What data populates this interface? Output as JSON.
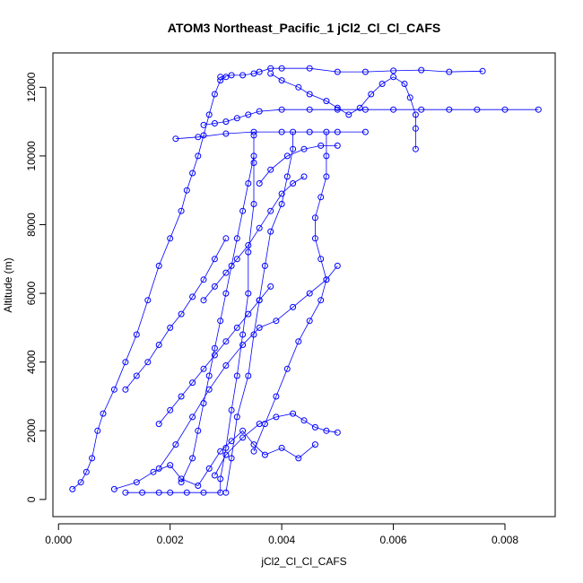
{
  "chart_data": {
    "type": "scatter",
    "title": "ATOM3 Northeast_Pacific_1 jCl2_Cl_Cl_CAFS",
    "xlabel": "jCl2_Cl_Cl_CAFS",
    "ylabel": "Altitude (m)",
    "xlim": [
      -0.0001,
      0.0089
    ],
    "ylim": [
      -500,
      13000
    ],
    "x_ticks": [
      0.0,
      0.002,
      0.004,
      0.006,
      0.008
    ],
    "x_tick_labels": [
      "0.000",
      "0.002",
      "0.004",
      "0.006",
      "0.008"
    ],
    "y_ticks": [
      0,
      2000,
      4000,
      6000,
      8000,
      10000,
      12000
    ],
    "y_tick_labels": [
      "0",
      "2000",
      "4000",
      "6000",
      "8000",
      "10000",
      "12000"
    ],
    "grid": false,
    "legend": "none",
    "marker": "open-circle",
    "color": "#0000FF",
    "series": [
      {
        "values": [
          [
            0.00025,
            300
          ],
          [
            0.0004,
            500
          ],
          [
            0.0005,
            800
          ],
          [
            0.0006,
            1200
          ],
          [
            0.0007,
            2000
          ],
          [
            0.0008,
            2500
          ],
          [
            0.001,
            3200
          ],
          [
            0.0012,
            4000
          ],
          [
            0.0014,
            4800
          ],
          [
            0.0016,
            5800
          ],
          [
            0.0018,
            6800
          ],
          [
            0.002,
            7600
          ],
          [
            0.0022,
            8400
          ],
          [
            0.0023,
            9000
          ],
          [
            0.0024,
            9500
          ],
          [
            0.0025,
            10000
          ],
          [
            0.0026,
            10600
          ],
          [
            0.0027,
            11200
          ],
          [
            0.0028,
            11800
          ],
          [
            0.0029,
            12200
          ],
          [
            0.003,
            12300
          ]
        ]
      },
      {
        "values": [
          [
            0.0029,
            12300
          ],
          [
            0.0031,
            12350
          ],
          [
            0.0033,
            12350
          ],
          [
            0.0035,
            12400
          ],
          [
            0.0036,
            12450
          ],
          [
            0.0038,
            12550
          ],
          [
            0.004,
            12550
          ],
          [
            0.0045,
            12550
          ],
          [
            0.005,
            12450
          ],
          [
            0.0055,
            12450
          ],
          [
            0.006,
            12480
          ],
          [
            0.0065,
            12500
          ],
          [
            0.007,
            12450
          ],
          [
            0.0076,
            12470
          ]
        ]
      },
      {
        "values": [
          [
            0.0026,
            10900
          ],
          [
            0.0028,
            10950
          ],
          [
            0.003,
            11000
          ],
          [
            0.0032,
            11100
          ],
          [
            0.0034,
            11200
          ],
          [
            0.0036,
            11300
          ],
          [
            0.004,
            11350
          ],
          [
            0.0045,
            11350
          ],
          [
            0.005,
            11350
          ],
          [
            0.0055,
            11350
          ],
          [
            0.006,
            11350
          ],
          [
            0.0065,
            11350
          ],
          [
            0.007,
            11350
          ],
          [
            0.0075,
            11350
          ],
          [
            0.008,
            11350
          ],
          [
            0.0086,
            11350
          ]
        ]
      },
      {
        "values": [
          [
            0.0021,
            10500
          ],
          [
            0.0025,
            10550
          ],
          [
            0.003,
            10650
          ],
          [
            0.0035,
            10700
          ],
          [
            0.004,
            10700
          ],
          [
            0.0045,
            10700
          ],
          [
            0.005,
            10700
          ],
          [
            0.0055,
            10700
          ]
        ]
      },
      {
        "values": [
          [
            0.0012,
            200
          ],
          [
            0.0015,
            200
          ],
          [
            0.0018,
            200
          ],
          [
            0.002,
            200
          ],
          [
            0.0023,
            200
          ],
          [
            0.0026,
            200
          ],
          [
            0.0029,
            200
          ],
          [
            0.0029,
            600
          ],
          [
            0.003,
            1500
          ],
          [
            0.0031,
            2600
          ],
          [
            0.0032,
            3600
          ],
          [
            0.0033,
            4800
          ],
          [
            0.0034,
            6000
          ],
          [
            0.0034,
            7200
          ],
          [
            0.0035,
            8600
          ],
          [
            0.0035,
            9800
          ],
          [
            0.0035,
            10600
          ]
        ]
      },
      {
        "values": [
          [
            0.003,
            200
          ],
          [
            0.0031,
            1200
          ],
          [
            0.0032,
            2400
          ],
          [
            0.0034,
            3600
          ],
          [
            0.0035,
            4800
          ],
          [
            0.0036,
            5800
          ],
          [
            0.0037,
            6800
          ],
          [
            0.0038,
            7800
          ],
          [
            0.004,
            8600
          ],
          [
            0.0041,
            9400
          ],
          [
            0.0042,
            10200
          ],
          [
            0.0042,
            10700
          ]
        ]
      },
      {
        "values": [
          [
            0.0035,
            1400
          ],
          [
            0.0037,
            2200
          ],
          [
            0.0039,
            3000
          ],
          [
            0.0041,
            3800
          ],
          [
            0.0043,
            4600
          ],
          [
            0.0045,
            5200
          ],
          [
            0.0047,
            5800
          ],
          [
            0.0048,
            6400
          ],
          [
            0.0047,
            7000
          ],
          [
            0.0046,
            7600
          ],
          [
            0.0046,
            8200
          ],
          [
            0.0047,
            8800
          ],
          [
            0.0048,
            9400
          ],
          [
            0.0048,
            10000
          ],
          [
            0.0048,
            10700
          ]
        ]
      },
      {
        "values": [
          [
            0.0022,
            500
          ],
          [
            0.0024,
            1200
          ],
          [
            0.0025,
            2000
          ],
          [
            0.0026,
            2800
          ],
          [
            0.0027,
            3600
          ],
          [
            0.0028,
            4400
          ],
          [
            0.0029,
            5200
          ],
          [
            0.003,
            6000
          ],
          [
            0.0031,
            6800
          ],
          [
            0.0032,
            7600
          ],
          [
            0.0033,
            8400
          ],
          [
            0.0034,
            9200
          ],
          [
            0.0035,
            10000
          ]
        ]
      },
      {
        "values": [
          [
            0.0028,
            700
          ],
          [
            0.003,
            1300
          ],
          [
            0.0033,
            1800
          ],
          [
            0.0036,
            2200
          ],
          [
            0.0039,
            2400
          ],
          [
            0.0042,
            2500
          ],
          [
            0.0044,
            2300
          ],
          [
            0.0046,
            2100
          ],
          [
            0.0048,
            2000
          ],
          [
            0.005,
            1950
          ]
        ]
      },
      {
        "values": [
          [
            0.0018,
            900
          ],
          [
            0.0021,
            1600
          ],
          [
            0.0024,
            2400
          ],
          [
            0.0027,
            3200
          ],
          [
            0.003,
            3900
          ],
          [
            0.0033,
            4500
          ],
          [
            0.0036,
            5000
          ],
          [
            0.0039,
            5200
          ],
          [
            0.0042,
            5600
          ],
          [
            0.0045,
            6000
          ],
          [
            0.0048,
            6400
          ],
          [
            0.005,
            6800
          ]
        ]
      },
      {
        "values": [
          [
            0.001,
            300
          ],
          [
            0.0014,
            500
          ],
          [
            0.0017,
            800
          ],
          [
            0.002,
            1000
          ],
          [
            0.0022,
            600
          ],
          [
            0.0025,
            400
          ],
          [
            0.0027,
            900
          ],
          [
            0.0029,
            1400
          ],
          [
            0.0031,
            1700
          ],
          [
            0.0033,
            2000
          ],
          [
            0.0035,
            1600
          ],
          [
            0.0037,
            1300
          ],
          [
            0.004,
            1500
          ],
          [
            0.0043,
            1200
          ],
          [
            0.0046,
            1600
          ]
        ]
      },
      {
        "values": [
          [
            0.0012,
            3200
          ],
          [
            0.0014,
            3600
          ],
          [
            0.0016,
            4000
          ],
          [
            0.0018,
            4500
          ],
          [
            0.002,
            5000
          ],
          [
            0.0022,
            5400
          ],
          [
            0.0024,
            5900
          ],
          [
            0.0026,
            6400
          ],
          [
            0.0028,
            7000
          ],
          [
            0.003,
            7600
          ]
        ]
      },
      {
        "values": [
          [
            0.0038,
            12400
          ],
          [
            0.004,
            12200
          ],
          [
            0.0043,
            12000
          ],
          [
            0.0045,
            11800
          ],
          [
            0.0048,
            11600
          ],
          [
            0.005,
            11400
          ],
          [
            0.0052,
            11200
          ],
          [
            0.0054,
            11400
          ],
          [
            0.0056,
            11800
          ],
          [
            0.0058,
            12100
          ],
          [
            0.006,
            12300
          ],
          [
            0.0062,
            12100
          ],
          [
            0.0063,
            11700
          ],
          [
            0.0064,
            11200
          ],
          [
            0.0064,
            10800
          ],
          [
            0.0064,
            10200
          ]
        ]
      },
      {
        "values": [
          [
            0.0036,
            9200
          ],
          [
            0.0038,
            9600
          ],
          [
            0.0041,
            10000
          ],
          [
            0.0044,
            10200
          ],
          [
            0.0047,
            10300
          ],
          [
            0.005,
            10300
          ]
        ]
      },
      {
        "values": [
          [
            0.0026,
            5800
          ],
          [
            0.0028,
            6200
          ],
          [
            0.003,
            6600
          ],
          [
            0.0032,
            7000
          ],
          [
            0.0034,
            7400
          ],
          [
            0.0036,
            7900
          ],
          [
            0.0038,
            8400
          ],
          [
            0.004,
            8900
          ],
          [
            0.0042,
            9200
          ],
          [
            0.0044,
            9400
          ]
        ]
      },
      {
        "values": [
          [
            0.0018,
            2200
          ],
          [
            0.002,
            2600
          ],
          [
            0.0022,
            3000
          ],
          [
            0.0024,
            3400
          ],
          [
            0.0026,
            3800
          ],
          [
            0.0028,
            4200
          ],
          [
            0.003,
            4600
          ],
          [
            0.0032,
            5000
          ],
          [
            0.0034,
            5400
          ],
          [
            0.0036,
            5800
          ],
          [
            0.0038,
            6200
          ]
        ]
      }
    ]
  }
}
